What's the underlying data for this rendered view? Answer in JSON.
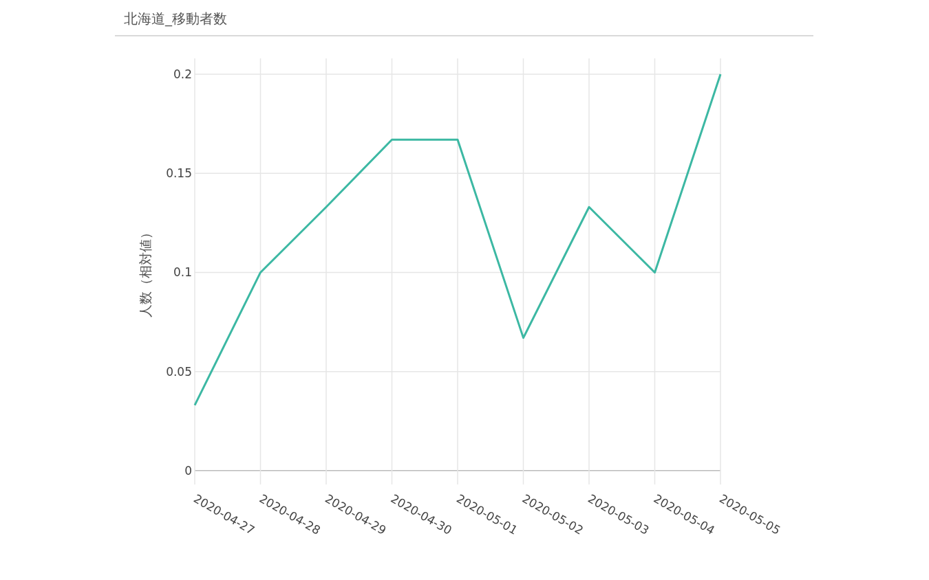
{
  "chart_data": {
    "type": "line",
    "title": "北海道_移動者数",
    "ylabel": "人数（相対値）",
    "x": [
      "2020-04-27",
      "2020-04-28",
      "2020-04-29",
      "2020-04-30",
      "2020-05-01",
      "2020-05-02",
      "2020-05-03",
      "2020-05-04",
      "2020-05-05"
    ],
    "series": [
      {
        "color": "#3cb8a3",
        "values": [
          0.033,
          0.1,
          0.133,
          0.167,
          0.167,
          0.067,
          0.133,
          0.1,
          0.2
        ]
      }
    ],
    "xlim": [
      "2020-04-27",
      "2020-05-05"
    ],
    "xticks": [
      "2020-04-27",
      "2020-04-28",
      "2020-04-29",
      "2020-04-30",
      "2020-05-01",
      "2020-05-02",
      "2020-05-03",
      "2020-05-04",
      "2020-05-05"
    ],
    "ylim": [
      -0.007,
      0.208
    ],
    "yticks": [
      0,
      0.05,
      0.1,
      0.15,
      0.2
    ],
    "grid": true
  }
}
